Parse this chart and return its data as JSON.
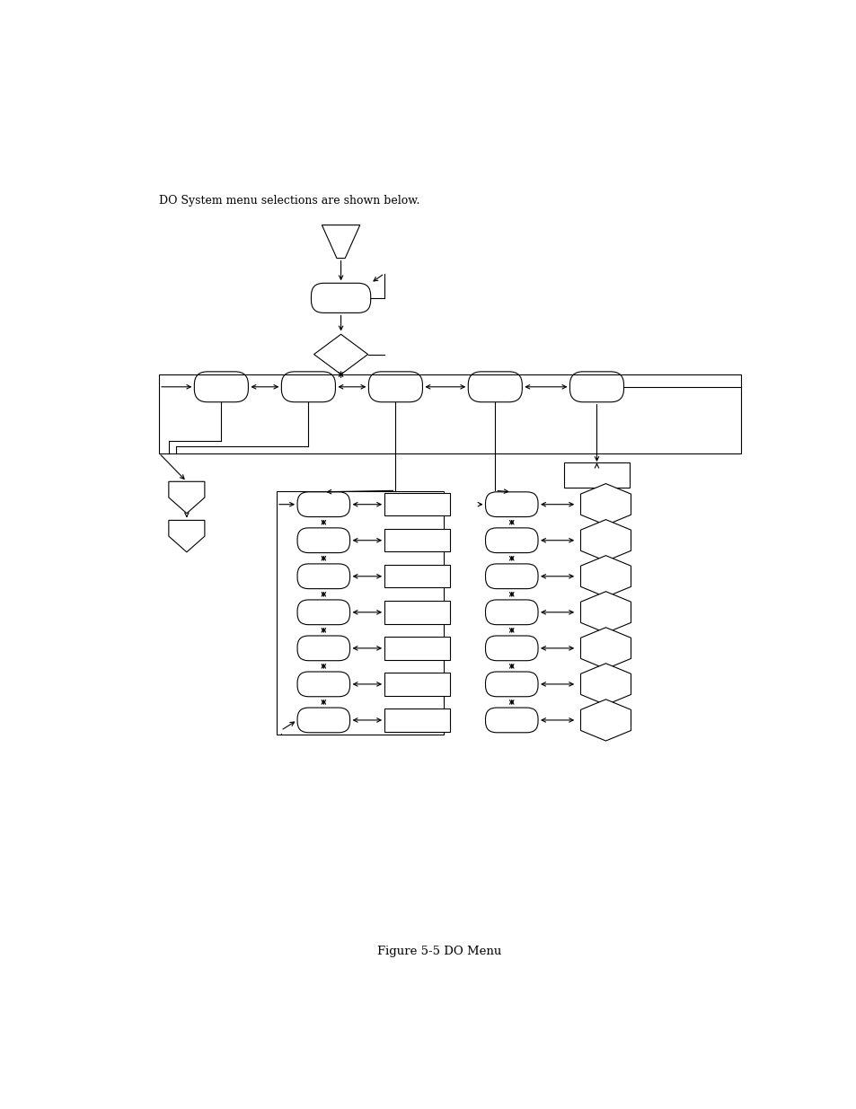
{
  "title": "Figure 5-5 DO Menu",
  "intro_text": "DO System menu selections are shown below.",
  "bg_color": "#ffffff",
  "line_color": "#000000",
  "shape_edge_color": "#000000",
  "shape_fill": "#ffffff"
}
